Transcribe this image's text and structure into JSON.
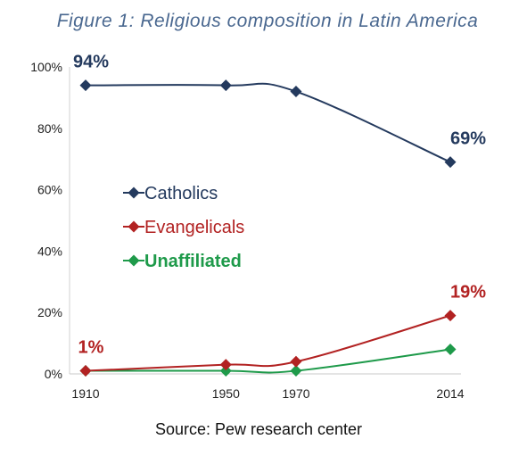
{
  "chart_data": {
    "type": "line",
    "title": "Figure 1: Religious composition in Latin America",
    "source": "Source: Pew research center",
    "x": [
      1910,
      1950,
      1970,
      2014
    ],
    "x_tick_labels": [
      "1910",
      "1950",
      "1970",
      "2014"
    ],
    "ylim": [
      0,
      100
    ],
    "y_ticks": [
      0,
      20,
      40,
      60,
      80,
      100
    ],
    "y_tick_labels": [
      "0%",
      "20%",
      "40%",
      "60%",
      "80%",
      "100%"
    ],
    "grid": false,
    "legend_position": "center-left",
    "series": [
      {
        "name": "Catholics",
        "values": [
          94,
          94,
          92,
          69
        ],
        "color": "#243a5e"
      },
      {
        "name": "Evangelicals",
        "values": [
          1,
          3,
          4,
          19
        ],
        "color": "#b22222"
      },
      {
        "name": "Unaffiliated",
        "values": [
          1,
          1,
          1,
          8
        ],
        "color": "#1e9a4a"
      }
    ],
    "annotations": [
      {
        "text": "94%",
        "series": "Catholics",
        "x": 1910
      },
      {
        "text": "69%",
        "series": "Catholics",
        "x": 2014
      },
      {
        "text": "1%",
        "series": "Evangelicals",
        "x": 1910
      },
      {
        "text": "19%",
        "series": "Evangelicals",
        "x": 2014
      }
    ],
    "title_color": "#4a6890"
  }
}
